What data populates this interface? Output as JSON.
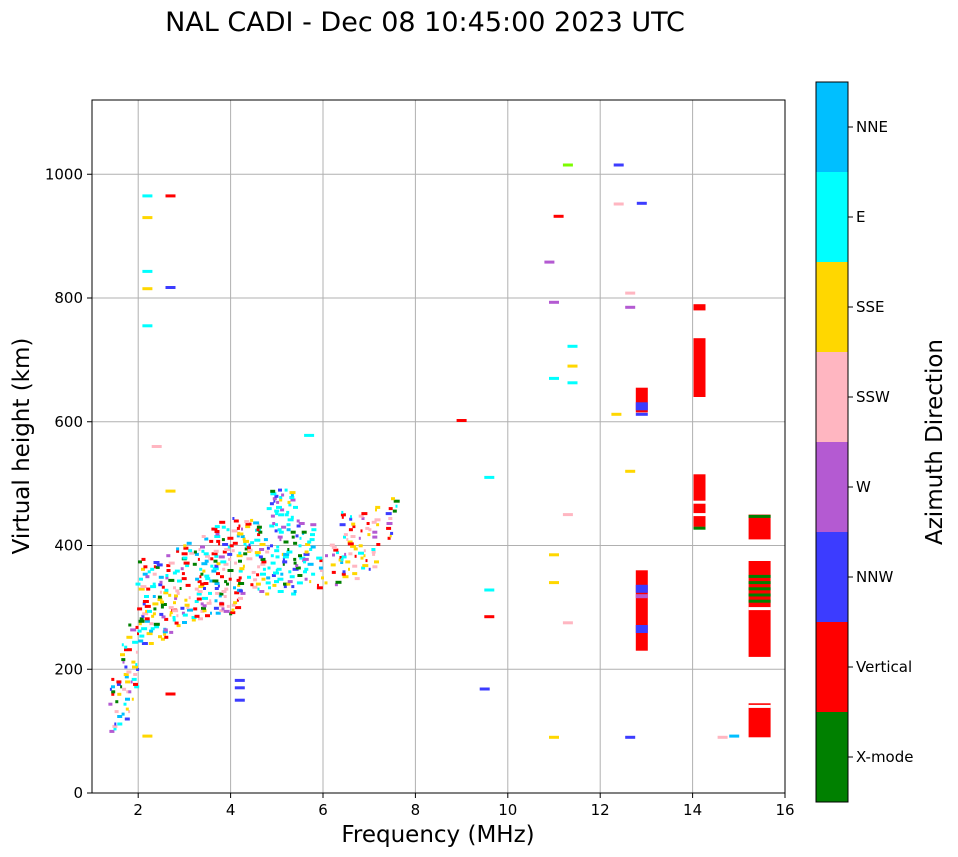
{
  "chart_data": {
    "type": "scatter",
    "title": "NAL CADI - Dec 08 10:45:00 2023 UTC",
    "xlabel": "Frequency (MHz)",
    "ylabel": "Virtual height (km)",
    "xlim": [
      1,
      16
    ],
    "ylim": [
      0,
      1120
    ],
    "xticks": [
      2,
      4,
      6,
      8,
      10,
      12,
      14,
      16
    ],
    "yticks": [
      0,
      200,
      400,
      600,
      800,
      1000
    ],
    "grid": true,
    "colorbar": {
      "title": "Azimuth Direction",
      "categories": [
        {
          "label": "X-mode",
          "color": "#008000"
        },
        {
          "label": "Vertical",
          "color": "#ff0000"
        },
        {
          "label": "NNW",
          "color": "#3c3cff"
        },
        {
          "label": "W",
          "color": "#b45ad2"
        },
        {
          "label": "SSW",
          "color": "#ffb6c1"
        },
        {
          "label": "SSE",
          "color": "#ffd700"
        },
        {
          "label": "E",
          "color": "#00ffff"
        },
        {
          "label": "NNE",
          "color": "#00bfff"
        }
      ]
    },
    "echoes": [
      {
        "f": 1.5,
        "h1": 90,
        "h2": 185,
        "dir": "mixed"
      },
      {
        "f": 1.7,
        "h1": 110,
        "h2": 240,
        "dir": "mixed"
      },
      {
        "f": 1.9,
        "h1": 150,
        "h2": 300,
        "dir": "mixed"
      },
      {
        "f": 2.1,
        "h1": 240,
        "h2": 380,
        "dir": "mixed"
      },
      {
        "f": 2.3,
        "h1": 240,
        "h2": 370,
        "dir": "mixed"
      },
      {
        "f": 2.5,
        "h1": 235,
        "h2": 380,
        "dir": "mixed"
      },
      {
        "f": 2.7,
        "h1": 250,
        "h2": 385,
        "dir": "mixed"
      },
      {
        "f": 2.9,
        "h1": 265,
        "h2": 400,
        "dir": "mixed"
      },
      {
        "f": 3.1,
        "h1": 270,
        "h2": 410,
        "dir": "mixed"
      },
      {
        "f": 3.3,
        "h1": 280,
        "h2": 400,
        "dir": "mixed"
      },
      {
        "f": 3.5,
        "h1": 285,
        "h2": 420,
        "dir": "mixed"
      },
      {
        "f": 3.7,
        "h1": 285,
        "h2": 430,
        "dir": "mixed"
      },
      {
        "f": 3.9,
        "h1": 280,
        "h2": 440,
        "dir": "mixed"
      },
      {
        "f": 4.1,
        "h1": 290,
        "h2": 450,
        "dir": "mixed"
      },
      {
        "f": 4.3,
        "h1": 305,
        "h2": 440,
        "dir": "mixed"
      },
      {
        "f": 4.5,
        "h1": 315,
        "h2": 440,
        "dir": "mixed"
      },
      {
        "f": 4.7,
        "h1": 320,
        "h2": 430,
        "dir": "mixed"
      },
      {
        "f": 4.9,
        "h1": 330,
        "h2": 490,
        "dir": "cyanmix"
      },
      {
        "f": 5.1,
        "h1": 320,
        "h2": 495,
        "dir": "cyanmix"
      },
      {
        "f": 5.3,
        "h1": 320,
        "h2": 490,
        "dir": "cyanmix"
      },
      {
        "f": 5.5,
        "h1": 330,
        "h2": 440,
        "dir": "cyanmix"
      },
      {
        "f": 5.7,
        "h1": 340,
        "h2": 440,
        "dir": "cyanmix"
      },
      {
        "f": 6.0,
        "h1": 330,
        "h2": 390,
        "dir": "mixed"
      },
      {
        "f": 6.3,
        "h1": 335,
        "h2": 400,
        "dir": "mixed"
      },
      {
        "f": 6.5,
        "h1": 340,
        "h2": 455,
        "dir": "yellowmix"
      },
      {
        "f": 6.7,
        "h1": 345,
        "h2": 450,
        "dir": "yellowmix"
      },
      {
        "f": 6.9,
        "h1": 350,
        "h2": 460,
        "dir": "yellowmix"
      },
      {
        "f": 7.1,
        "h1": 360,
        "h2": 470,
        "dir": "yellowmix"
      },
      {
        "f": 7.5,
        "h1": 410,
        "h2": 480,
        "dir": "mixed"
      }
    ],
    "blocks": [
      {
        "f": 12.9,
        "h1": 230,
        "h2": 360,
        "dir": "Vertical"
      },
      {
        "f": 12.9,
        "h1": 615,
        "h2": 655,
        "dir": "Vertical"
      },
      {
        "f": 14.15,
        "h1": 640,
        "h2": 735,
        "dir": "Vertical"
      },
      {
        "f": 14.15,
        "h1": 430,
        "h2": 515,
        "dir": "Vertical"
      },
      {
        "f": 14.15,
        "h1": 780,
        "h2": 790,
        "dir": "Vertical"
      },
      {
        "f": 15.45,
        "h1": 220,
        "h2": 375,
        "dir": "Vertical"
      },
      {
        "f": 15.45,
        "h1": 410,
        "h2": 450,
        "dir": "Vertical"
      },
      {
        "f": 15.45,
        "h1": 90,
        "h2": 145,
        "dir": "Vertical"
      }
    ]
  }
}
